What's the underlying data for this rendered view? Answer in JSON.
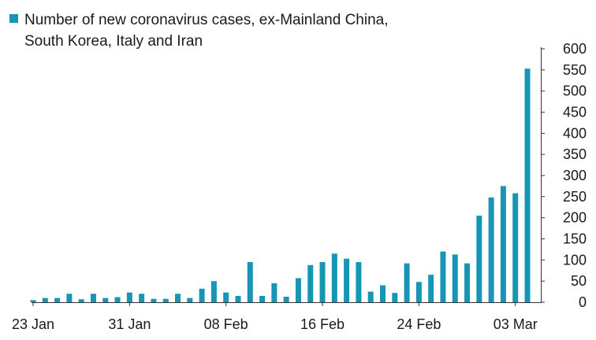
{
  "chart_data": {
    "type": "bar",
    "title": "Number of new coronavirus cases, ex-Mainland China, South Korea, Italy and Iran",
    "legend": [
      {
        "label_line1": "Number of new coronavirus cases, ex-Mainland China,",
        "label_line2": "South Korea, Italy and Iran"
      }
    ],
    "series": [
      {
        "name": "Number of new coronavirus cases, ex-Mainland China, South Korea, Italy and Iran",
        "color": "#1696b4",
        "values": [
          5,
          10,
          10,
          20,
          7,
          20,
          10,
          12,
          23,
          20,
          8,
          8,
          20,
          10,
          32,
          50,
          23,
          15,
          95,
          15,
          45,
          13,
          57,
          88,
          95,
          115,
          103,
          95,
          25,
          40,
          22,
          92,
          48,
          65,
          120,
          113,
          92,
          205,
          248,
          275,
          258,
          553
        ]
      }
    ],
    "x_tick_labels": [
      "23 Jan",
      "31 Jan",
      "08 Feb",
      "16 Feb",
      "24 Feb",
      "03 Mar"
    ],
    "x_tick_indices": [
      0,
      8,
      16,
      24,
      32,
      40
    ],
    "y_ticks": [
      0,
      50,
      100,
      150,
      200,
      250,
      300,
      350,
      400,
      450,
      500,
      550,
      600
    ],
    "ylim": [
      0,
      600
    ],
    "y_axis_side": "right",
    "xlabel": "",
    "ylabel": "",
    "grid": false
  }
}
